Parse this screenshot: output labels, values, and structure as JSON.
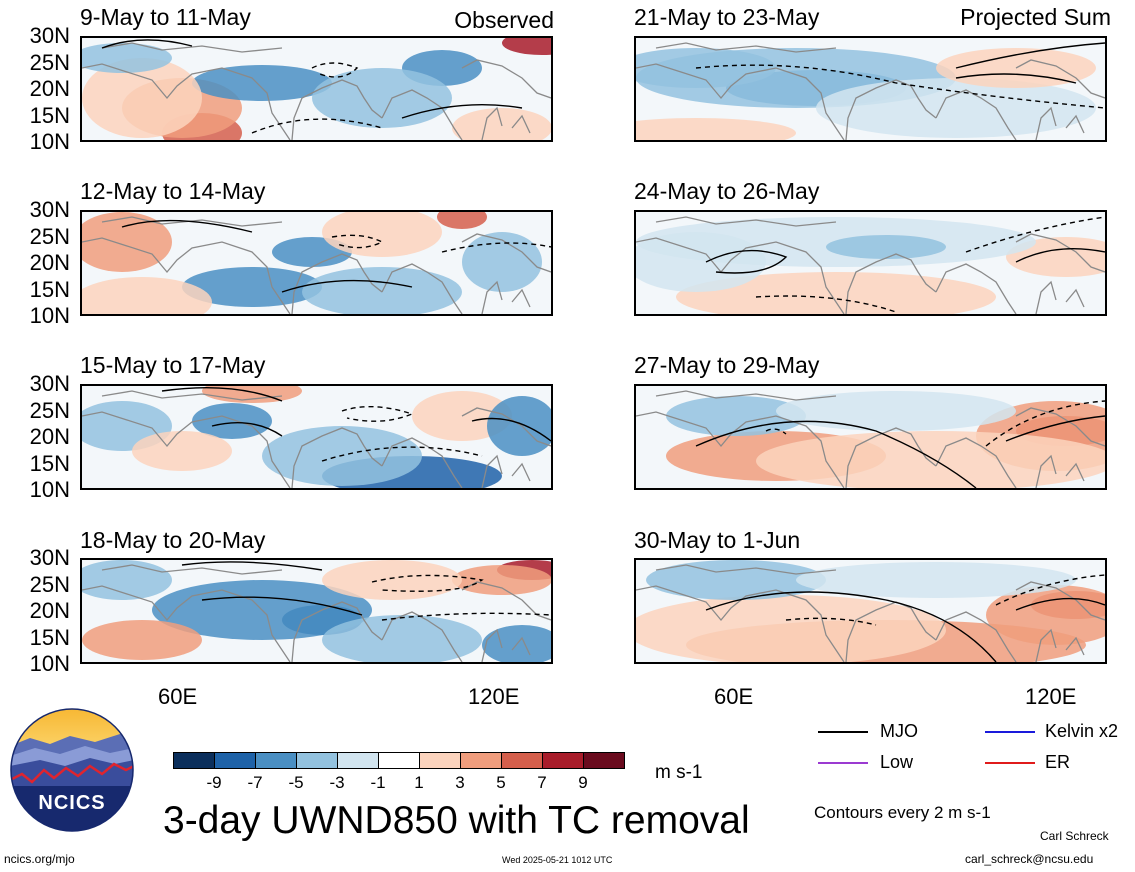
{
  "header": {
    "left_tag": "Observed",
    "right_tag": "Projected Sum"
  },
  "panels_left": [
    {
      "title": "9-May to 11-May"
    },
    {
      "title": "12-May to 14-May"
    },
    {
      "title": "15-May to 17-May"
    },
    {
      "title": "18-May to 20-May"
    }
  ],
  "panels_right": [
    {
      "title": "21-May to 23-May"
    },
    {
      "title": "24-May to 26-May"
    },
    {
      "title": "27-May to 29-May"
    },
    {
      "title": "30-May to 1-Jun"
    }
  ],
  "axes": {
    "lat_labels": [
      "30N",
      "25N",
      "20N",
      "15N",
      "10N"
    ],
    "lon_labels": [
      "60E",
      "120E"
    ]
  },
  "colorbar": {
    "labels": [
      "-9",
      "-7",
      "-5",
      "-3",
      "-1",
      "1",
      "3",
      "5",
      "7",
      "9"
    ],
    "colors": [
      "#0b2f5c",
      "#1e62a8",
      "#4a8fc3",
      "#93c2df",
      "#d2e5f0",
      "#ffffff",
      "#fbd3bd",
      "#f09d7d",
      "#d55f4c",
      "#a81c2a",
      "#6a0b1e"
    ],
    "units": "m s-1"
  },
  "legend": {
    "items": [
      {
        "label": "MJO",
        "color": "#000000"
      },
      {
        "label": "Kelvin x2",
        "color": "#1a1adb"
      },
      {
        "label": "Low",
        "color": "#9b3ad1"
      },
      {
        "label": "ER",
        "color": "#e01b1b"
      }
    ],
    "note": "Contours every 2 m s-1"
  },
  "footer": {
    "title": "3-day UWND850 with TC removal",
    "logo_text": "NCICS",
    "url": "ncics.org/mjo",
    "timestamp": "Wed 2025-05-21 1012 UTC",
    "author": "Carl Schreck",
    "email": "carl_schreck@ncsu.edu"
  }
}
